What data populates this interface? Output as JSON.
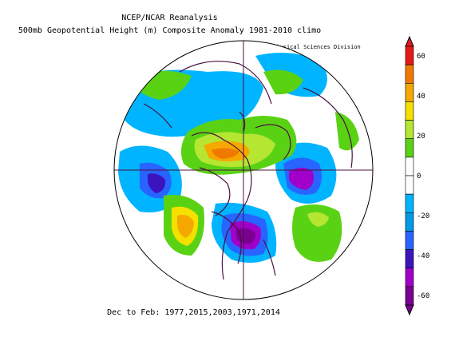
{
  "header": {
    "line1": "NCEP/NCAR Reanalysis",
    "line2": "500mb Geopotential Height (m) Composite Anomaly 1981-2010 climo",
    "credit": "NOAA/ESRL Physical Sciences Division"
  },
  "footer": {
    "text": "Dec to Feb: 1977,2015,2003,1971,2014"
  },
  "colorbar": {
    "labels": [
      "60",
      "40",
      "20",
      "0",
      "-20",
      "-40",
      "-60"
    ],
    "colors": [
      "#e41a1a",
      "#f07a00",
      "#f5a800",
      "#f5e000",
      "#b4e632",
      "#5ad214",
      "#ffffff",
      "#ffffff",
      "#00b4ff",
      "#009be6",
      "#2864ff",
      "#3c14be",
      "#a000c8",
      "#7a0090"
    ]
  },
  "map": {
    "projection": "north-polar-stereographic",
    "field": "500mb geopotential height anomaly"
  }
}
